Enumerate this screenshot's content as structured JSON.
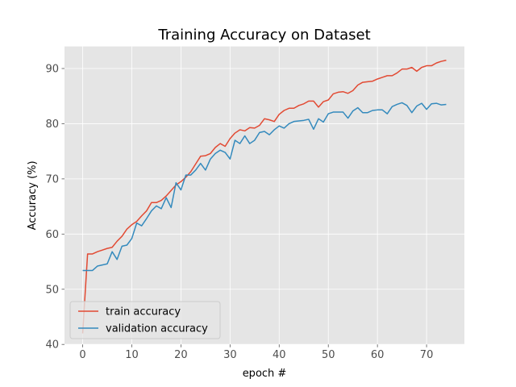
{
  "chart_data": {
    "type": "line",
    "title": "Training Accuracy on Dataset",
    "xlabel": "epoch #",
    "ylabel": "Accuracy (%)",
    "xlim": [
      -3.7,
      77.7
    ],
    "ylim": [
      40,
      94
    ],
    "xticks": [
      0,
      10,
      20,
      30,
      40,
      50,
      60,
      70
    ],
    "yticks": [
      40,
      50,
      60,
      70,
      80,
      90
    ],
    "xtick_labels": [
      "0",
      "10",
      "20",
      "30",
      "40",
      "50",
      "60",
      "70"
    ],
    "ytick_labels": [
      "40",
      "50",
      "60",
      "70",
      "80",
      "90"
    ],
    "grid": true,
    "style": "ggplot",
    "legend_position": "lower-left",
    "x": [
      0,
      1,
      2,
      3,
      4,
      5,
      6,
      7,
      8,
      9,
      10,
      11,
      12,
      13,
      14,
      15,
      16,
      17,
      18,
      19,
      20,
      21,
      22,
      23,
      24,
      25,
      26,
      27,
      28,
      29,
      30,
      31,
      32,
      33,
      34,
      35,
      36,
      37,
      38,
      39,
      40,
      41,
      42,
      43,
      44,
      45,
      46,
      47,
      48,
      49,
      50,
      51,
      52,
      53,
      54,
      55,
      56,
      57,
      58,
      59,
      60,
      61,
      62,
      63,
      64,
      65,
      66,
      67,
      68,
      69,
      70,
      71,
      72,
      73,
      74
    ],
    "series": [
      {
        "name": "train accuracy",
        "color": "#e24a33",
        "values": [
          42.0,
          56.4,
          56.4,
          56.8,
          57.1,
          57.4,
          57.6,
          58.7,
          59.6,
          60.9,
          61.7,
          62.3,
          63.3,
          64.2,
          65.7,
          65.7,
          66.1,
          66.9,
          67.9,
          68.9,
          69.5,
          70.3,
          71.3,
          72.7,
          74.1,
          74.2,
          74.6,
          75.7,
          76.4,
          75.9,
          77.3,
          78.3,
          78.9,
          78.7,
          79.3,
          79.2,
          79.7,
          80.9,
          80.7,
          80.4,
          81.7,
          82.4,
          82.8,
          82.8,
          83.3,
          83.6,
          84.1,
          84.1,
          83.0,
          84.0,
          84.3,
          85.4,
          85.7,
          85.8,
          85.5,
          86.0,
          87.0,
          87.5,
          87.6,
          87.7,
          88.1,
          88.4,
          88.7,
          88.7,
          89.2,
          89.9,
          89.9,
          90.2,
          89.5,
          90.2,
          90.5,
          90.5,
          91.0,
          91.3,
          91.5
        ]
      },
      {
        "name": "validation accuracy",
        "color": "#348abd",
        "values": [
          53.4,
          53.4,
          53.4,
          54.2,
          54.4,
          54.6,
          56.8,
          55.4,
          57.8,
          58.0,
          59.2,
          62.0,
          61.5,
          62.8,
          64.2,
          65.1,
          64.6,
          66.6,
          64.8,
          69.3,
          68.0,
          70.7,
          70.7,
          71.6,
          72.8,
          71.6,
          73.6,
          74.6,
          75.2,
          74.8,
          73.6,
          77.0,
          76.4,
          77.8,
          76.4,
          77.0,
          78.4,
          78.6,
          78.0,
          78.9,
          79.6,
          79.2,
          80.0,
          80.4,
          80.5,
          80.6,
          80.8,
          79.0,
          80.9,
          80.3,
          81.8,
          82.1,
          82.1,
          82.1,
          81.0,
          82.3,
          82.9,
          82.0,
          82.0,
          82.4,
          82.5,
          82.5,
          81.8,
          83.1,
          83.5,
          83.8,
          83.3,
          82.0,
          83.2,
          83.7,
          82.6,
          83.6,
          83.7,
          83.4,
          83.5
        ]
      }
    ]
  }
}
